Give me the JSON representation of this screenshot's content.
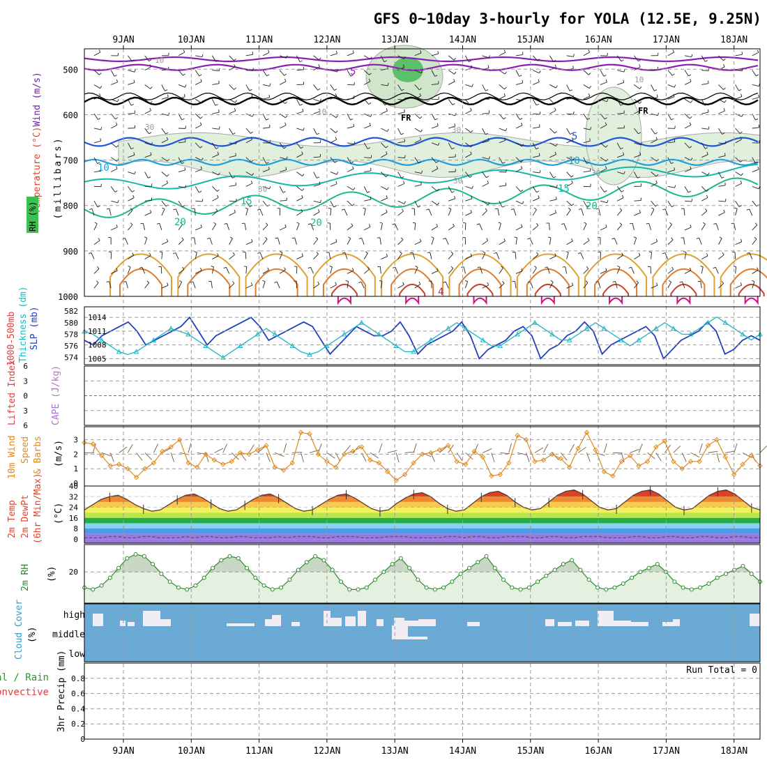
{
  "title": "GFS 0~10day 3-hourly for YOLA (12.5E, 9.25N)",
  "dates": [
    "9JAN",
    "10JAN",
    "11JAN",
    "12JAN",
    "13JAN",
    "14JAN",
    "15JAN",
    "16JAN",
    "17JAN",
    "18JAN"
  ],
  "colors": {
    "frame": "#000000",
    "grid": "#9a9a9a",
    "temp_label": "#e0452b",
    "wind_label": "#6a1fa0",
    "rh_label": "#2a9a2a",
    "thickness": "#19b8c8",
    "slp": "#1f3fbf",
    "cape": "#b070d0",
    "lifted_index": "#e04040",
    "wind10m": "#e08a1a",
    "rh2m": "#2a8a2a",
    "cloud": "#6aaad4",
    "cloud_clear": "#f0eef4"
  },
  "panels": {
    "upper": {
      "left_label": "Wind (m/s)",
      "left_label_temp": "Temperature (°C)",
      "left_label_rh": "RH (%)",
      "axis_label": "(millibars)",
      "y_ticks": [
        "500",
        "600",
        "700",
        "800",
        "900",
        "1000"
      ],
      "isotherm_labels": [
        "5",
        "5",
        "10",
        "10",
        "15",
        "15",
        "20",
        "20",
        "20",
        "4"
      ],
      "rh_labels": [
        "10",
        "10",
        "10",
        "30",
        "30",
        "30",
        "30",
        "30"
      ],
      "freezing_labels": [
        "FR",
        "FR"
      ]
    },
    "thickness": {
      "label_left": "Thickness (dm)",
      "label_top": "1000-500mb",
      "label_right": "SLP (mb)",
      "y_ticks_left": [
        "582",
        "580",
        "578",
        "576",
        "574"
      ],
      "y_ticks_right": [
        "1014",
        "1011",
        "1008",
        "1005"
      ]
    },
    "cape": {
      "label_lifted": "Lifted Index",
      "label_cape": "CAPE (J/kg)",
      "y_ticks": [
        "6",
        "3",
        "0",
        "3",
        "6"
      ]
    },
    "wind10m": {
      "label": "10m Wind Speed & Barbs",
      "label_line1": "10m Wind",
      "label_line2": "Speed",
      "label_line3": "& Barbs",
      "unit": "(m/s)",
      "y_ticks": [
        "3",
        "2",
        "1",
        "0"
      ]
    },
    "temp2m": {
      "label_line1": "2m Temp",
      "label_line2": "2m DewPt",
      "label_line3": "(6hr Min/Max)",
      "unit": "(°C)",
      "y_ticks": [
        "40",
        "32",
        "24",
        "16",
        "8",
        "0"
      ]
    },
    "rh2m": {
      "label": "2m RH",
      "unit": "(%)",
      "y_ticks": [
        "20"
      ]
    },
    "cloud": {
      "label": "Cloud Cover",
      "unit": "(%)",
      "levels": [
        "high",
        "middle",
        "low"
      ]
    },
    "precip": {
      "label_line1": "Total / Rain",
      "label_line2": "Convective",
      "axis_label": "3hr Precip (mm)",
      "run_total": "Run Total = 0",
      "y_ticks": [
        "0.8",
        "0.6",
        "0.4",
        "0.2",
        "0"
      ]
    }
  },
  "chart_data": [
    {
      "type": "line",
      "name": "thickness_slp",
      "series": [
        {
          "name": "1000-500mb Thickness (dm)",
          "values": [
            578.5,
            578,
            577,
            576,
            575,
            574.5,
            575,
            576,
            577,
            578,
            579,
            578.5,
            578,
            577,
            576,
            575,
            574,
            575,
            576,
            577,
            578,
            579,
            578,
            577,
            576,
            575,
            574.5,
            575,
            576,
            577,
            578,
            579,
            580,
            579,
            578,
            577,
            576,
            575,
            575,
            576,
            577,
            578,
            579,
            580,
            579,
            578,
            577,
            576,
            576,
            577,
            578,
            579,
            580,
            579,
            578,
            577,
            577,
            578,
            579,
            580,
            579,
            578,
            577,
            576,
            577,
            578,
            579,
            580,
            579,
            578,
            578,
            579,
            580,
            581,
            580,
            579,
            578,
            577,
            578
          ]
        },
        {
          "name": "SLP (mb)",
          "values": [
            1009,
            1008,
            1010,
            1011,
            1012,
            1013,
            1011,
            1008,
            1009,
            1010,
            1011,
            1012,
            1014,
            1011,
            1008,
            1010,
            1011,
            1012,
            1013,
            1014,
            1012,
            1009,
            1010,
            1011,
            1012,
            1013,
            1012,
            1009,
            1006,
            1008,
            1010,
            1012,
            1011,
            1010,
            1010,
            1011,
            1013,
            1010,
            1006,
            1008,
            1009,
            1010,
            1011,
            1013,
            1010,
            1005,
            1007,
            1008,
            1009,
            1011,
            1012,
            1010,
            1005,
            1007,
            1008,
            1010,
            1011,
            1013,
            1011,
            1006,
            1008,
            1009,
            1010,
            1011,
            1012,
            1010,
            1005,
            1007,
            1009,
            1010,
            1011,
            1013,
            1011,
            1006,
            1007,
            1009,
            1010,
            1009
          ]
        }
      ]
    },
    {
      "type": "line",
      "name": "wind10m_speed",
      "ylim": [
        0,
        3.8
      ],
      "values": [
        2.8,
        2.7,
        1.9,
        1.2,
        1.3,
        1.0,
        0.4,
        1.0,
        1.4,
        2.2,
        2.5,
        3.0,
        1.4,
        1.1,
        2.0,
        1.6,
        1.3,
        1.5,
        2.1,
        2.0,
        2.3,
        2.6,
        1.1,
        0.9,
        1.4,
        3.5,
        3.4,
        2.0,
        1.5,
        1.1,
        2.0,
        2.2,
        2.5,
        1.6,
        1.4,
        0.8,
        0.2,
        0.6,
        1.4,
        2.0,
        2.1,
        2.3,
        2.6,
        1.5,
        1.3,
        2.2,
        1.8,
        0.5,
        0.6,
        1.4,
        3.3,
        3.0,
        1.5,
        1.6,
        2.0,
        1.7,
        1.1,
        2.4,
        3.5,
        2.3,
        0.8,
        0.5,
        1.5,
        1.9,
        1.2,
        1.5,
        2.5,
        2.9,
        1.5,
        1.0,
        1.5,
        1.5,
        2.6,
        3.0,
        1.8,
        0.6,
        1.3,
        1.9,
        1.2
      ]
    },
    {
      "type": "area",
      "name": "temp2m",
      "ylim": [
        0,
        40
      ],
      "values": [
        22,
        26,
        30,
        32,
        33,
        30,
        26,
        23,
        21,
        22,
        26,
        30,
        33,
        34,
        31,
        27,
        23,
        21,
        22,
        26,
        30,
        33,
        34,
        31,
        27,
        23,
        21,
        22,
        26,
        30,
        33,
        34,
        31,
        27,
        23,
        21,
        22,
        27,
        31,
        34,
        35,
        32,
        27,
        23,
        21,
        22,
        27,
        32,
        35,
        36,
        33,
        28,
        24,
        22,
        23,
        28,
        33,
        36,
        37,
        34,
        29,
        24,
        22,
        23,
        28,
        33,
        36,
        37,
        34,
        29,
        24,
        22,
        23,
        28,
        33,
        36,
        37,
        34,
        29,
        24,
        22
      ],
      "dewpoint": [
        1,
        1,
        1,
        2,
        2,
        1,
        1,
        2,
        2,
        1,
        1,
        1,
        2,
        1,
        2,
        2,
        1,
        1,
        2,
        2,
        1,
        1,
        1,
        2,
        1,
        2,
        2,
        2,
        1,
        1,
        2,
        2,
        2,
        1,
        1,
        1,
        2,
        2,
        2,
        1,
        1,
        1,
        1,
        2,
        2,
        1,
        2,
        2,
        1,
        1,
        2,
        2,
        2,
        1,
        1,
        2,
        2,
        1,
        1,
        2,
        2,
        2,
        1,
        1,
        1,
        2,
        2,
        1,
        1,
        2,
        2,
        1,
        1,
        2,
        2,
        1,
        1,
        2,
        2,
        1,
        1
      ]
    },
    {
      "type": "area",
      "name": "rh2m",
      "ylim": [
        0,
        40
      ],
      "values": [
        12,
        11,
        13,
        17,
        22,
        27,
        29,
        28,
        24,
        19,
        15,
        12,
        11,
        13,
        17,
        22,
        26,
        28,
        27,
        22,
        17,
        13,
        11,
        12,
        16,
        21,
        25,
        28,
        26,
        21,
        15,
        11,
        11,
        12,
        16,
        20,
        24,
        27,
        22,
        16,
        12,
        11,
        12,
        15,
        19,
        22,
        25,
        28,
        22,
        16,
        12,
        11,
        12,
        15,
        18,
        21,
        24,
        26,
        21,
        16,
        12,
        11,
        12,
        14,
        17,
        20,
        22,
        24,
        20,
        15,
        12,
        11,
        12,
        14,
        17,
        19,
        21,
        23,
        19,
        15
      ]
    }
  ]
}
